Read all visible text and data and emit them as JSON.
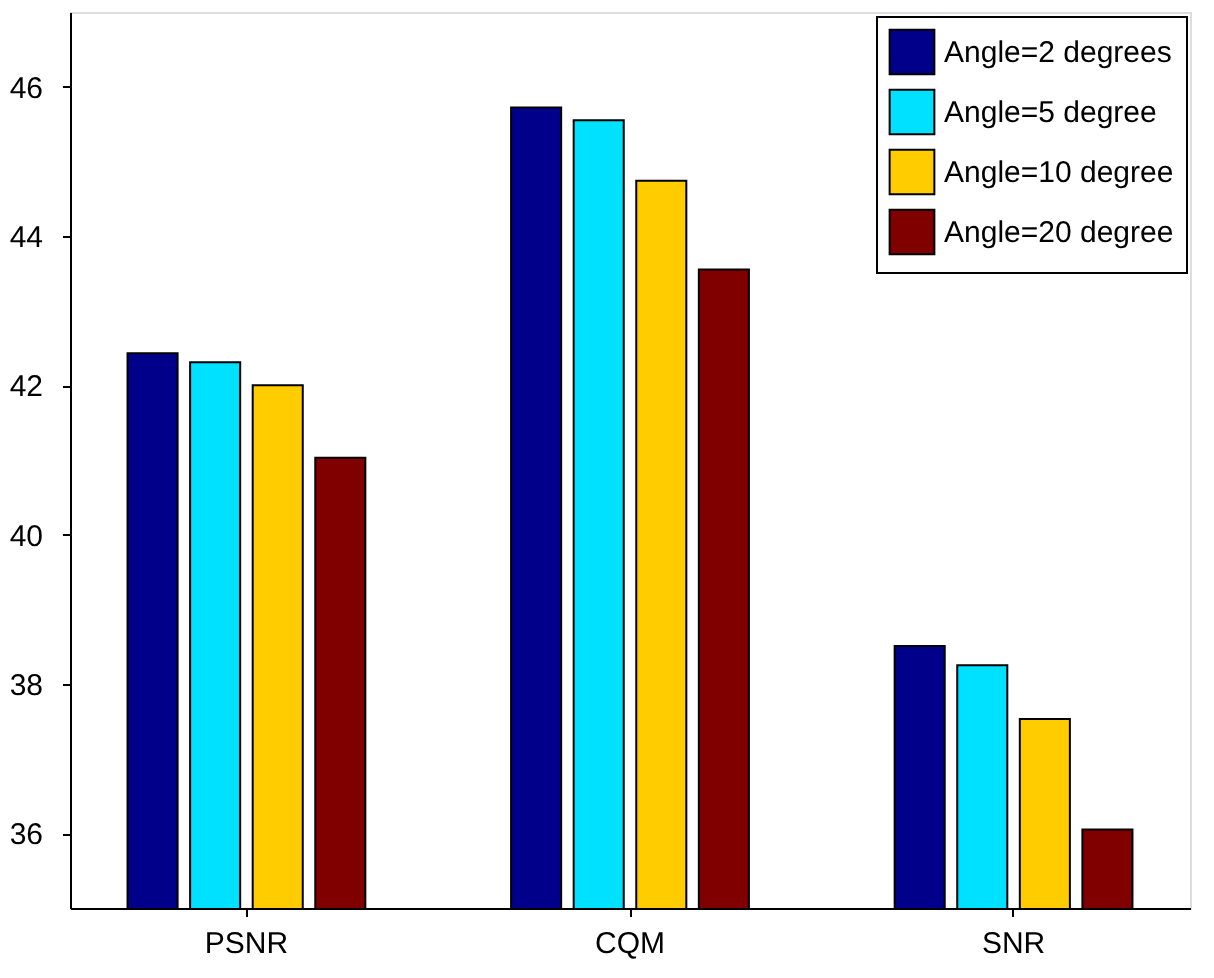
{
  "chart_data": {
    "type": "bar",
    "categories": [
      "PSNR",
      "CQM",
      "SNR"
    ],
    "series": [
      {
        "name": "Angle=2 degrees",
        "color": "#00008b",
        "values": [
          42.43,
          45.72,
          38.51
        ]
      },
      {
        "name": "Angle=5 degree",
        "color": "#00e0ff",
        "values": [
          42.31,
          45.55,
          38.25
        ]
      },
      {
        "name": "Angle=10 degree",
        "color": "#ffcc00",
        "values": [
          42.0,
          44.74,
          37.53
        ]
      },
      {
        "name": "Angle=20 degree",
        "color": "#800000",
        "values": [
          41.03,
          43.55,
          36.05
        ]
      }
    ],
    "ylim": [
      35,
      47
    ],
    "yticks": [
      36,
      38,
      40,
      42,
      44,
      46
    ],
    "grid": false,
    "legend": "top right"
  }
}
